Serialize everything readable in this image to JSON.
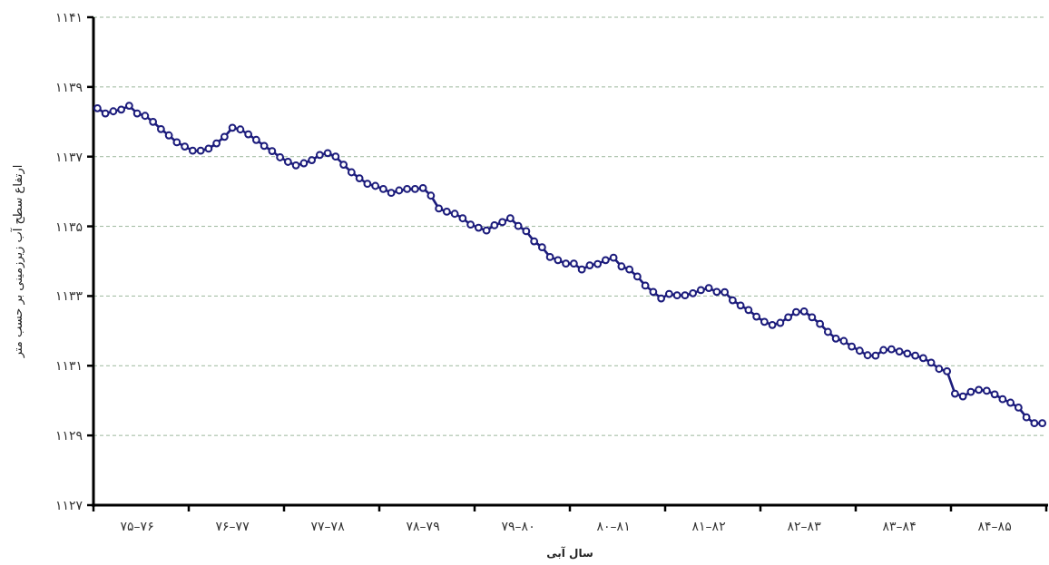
{
  "chart_data": {
    "type": "line",
    "xlabel": "سال آبی",
    "ylabel": "ارتفاع سطح آب زیرزمینی بر حسب متر",
    "color": "#1c1c7c",
    "marker": "circle",
    "line_style": "solid",
    "grid": "y",
    "categories": [
      null,
      null,
      null,
      null,
      null,
      "۷۵–۷۶",
      null,
      null,
      null,
      null,
      null,
      null,
      null,
      null,
      null,
      null,
      null,
      "۷۶–۷۷",
      null,
      null,
      null,
      null,
      null,
      null,
      null,
      null,
      null,
      null,
      null,
      "۷۷–۷۸",
      null,
      null,
      null,
      null,
      null,
      null,
      null,
      null,
      null,
      null,
      null,
      "۷۸–۷۹",
      null,
      null,
      null,
      null,
      null,
      null,
      null,
      null,
      null,
      null,
      null,
      "۷۹–۸۰",
      null,
      null,
      null,
      null,
      null,
      null,
      null,
      null,
      null,
      null,
      null,
      "۸۰–۸۱",
      null,
      null,
      null,
      null,
      null,
      null,
      null,
      null,
      null,
      null,
      null,
      "۸۱–۸۲",
      null,
      null,
      null,
      null,
      null,
      null,
      null,
      null,
      null,
      null,
      null,
      "۸۲–۸۳",
      null,
      null,
      null,
      null,
      null,
      null,
      null,
      null,
      null,
      null,
      null,
      "۸۳–۸۴",
      null,
      null,
      null,
      null,
      null,
      null,
      null,
      null,
      null,
      null,
      null,
      "۸۴–۸۵",
      null,
      null,
      null,
      null,
      null,
      null
    ],
    "ylim": [
      1127,
      1141
    ],
    "yticks": [
      {
        "value": 1127,
        "label": "۱۱۲۷"
      },
      {
        "value": 1129,
        "label": "۱۱۲۹"
      },
      {
        "value": 1131,
        "label": "۱۱۳۱"
      },
      {
        "value": 1133,
        "label": "۱۱۳۳"
      },
      {
        "value": 1135,
        "label": "۱۱۳۵"
      },
      {
        "value": 1137,
        "label": "۱۱۳۷"
      },
      {
        "value": 1139,
        "label": "۱۱۳۹"
      },
      {
        "value": 1141,
        "label": "۱۱۴۱"
      }
    ],
    "values": [
      1138.39,
      1138.24,
      1138.3,
      1138.35,
      1138.46,
      1138.24,
      1138.17,
      1138.0,
      1137.79,
      1137.61,
      1137.41,
      1137.29,
      1137.17,
      1137.17,
      1137.23,
      1137.38,
      1137.57,
      1137.83,
      1137.78,
      1137.64,
      1137.48,
      1137.31,
      1137.16,
      1136.98,
      1136.85,
      1136.75,
      1136.81,
      1136.9,
      1137.05,
      1137.1,
      1137.0,
      1136.77,
      1136.55,
      1136.38,
      1136.22,
      1136.16,
      1136.07,
      1135.96,
      1136.03,
      1136.07,
      1136.07,
      1136.1,
      1135.88,
      1135.51,
      1135.42,
      1135.36,
      1135.23,
      1135.05,
      1134.96,
      1134.88,
      1135.03,
      1135.12,
      1135.23,
      1135.01,
      1134.86,
      1134.57,
      1134.4,
      1134.12,
      1134.03,
      1133.93,
      1133.93,
      1133.76,
      1133.88,
      1133.92,
      1134.03,
      1134.1,
      1133.85,
      1133.76,
      1133.56,
      1133.3,
      1133.12,
      1132.93,
      1133.06,
      1133.02,
      1133.02,
      1133.08,
      1133.17,
      1133.23,
      1133.12,
      1133.11,
      1132.88,
      1132.73,
      1132.6,
      1132.41,
      1132.26,
      1132.17,
      1132.23,
      1132.39,
      1132.54,
      1132.56,
      1132.39,
      1132.2,
      1131.97,
      1131.78,
      1131.71,
      1131.55,
      1131.43,
      1131.3,
      1131.29,
      1131.45,
      1131.47,
      1131.41,
      1131.35,
      1131.29,
      1131.22,
      1131.09,
      1130.91,
      1130.84,
      1130.2,
      1130.12,
      1130.25,
      1130.31,
      1130.28,
      1130.18,
      1130.04,
      1129.94,
      1129.8,
      1129.52,
      1129.35,
      1129.35
    ]
  }
}
